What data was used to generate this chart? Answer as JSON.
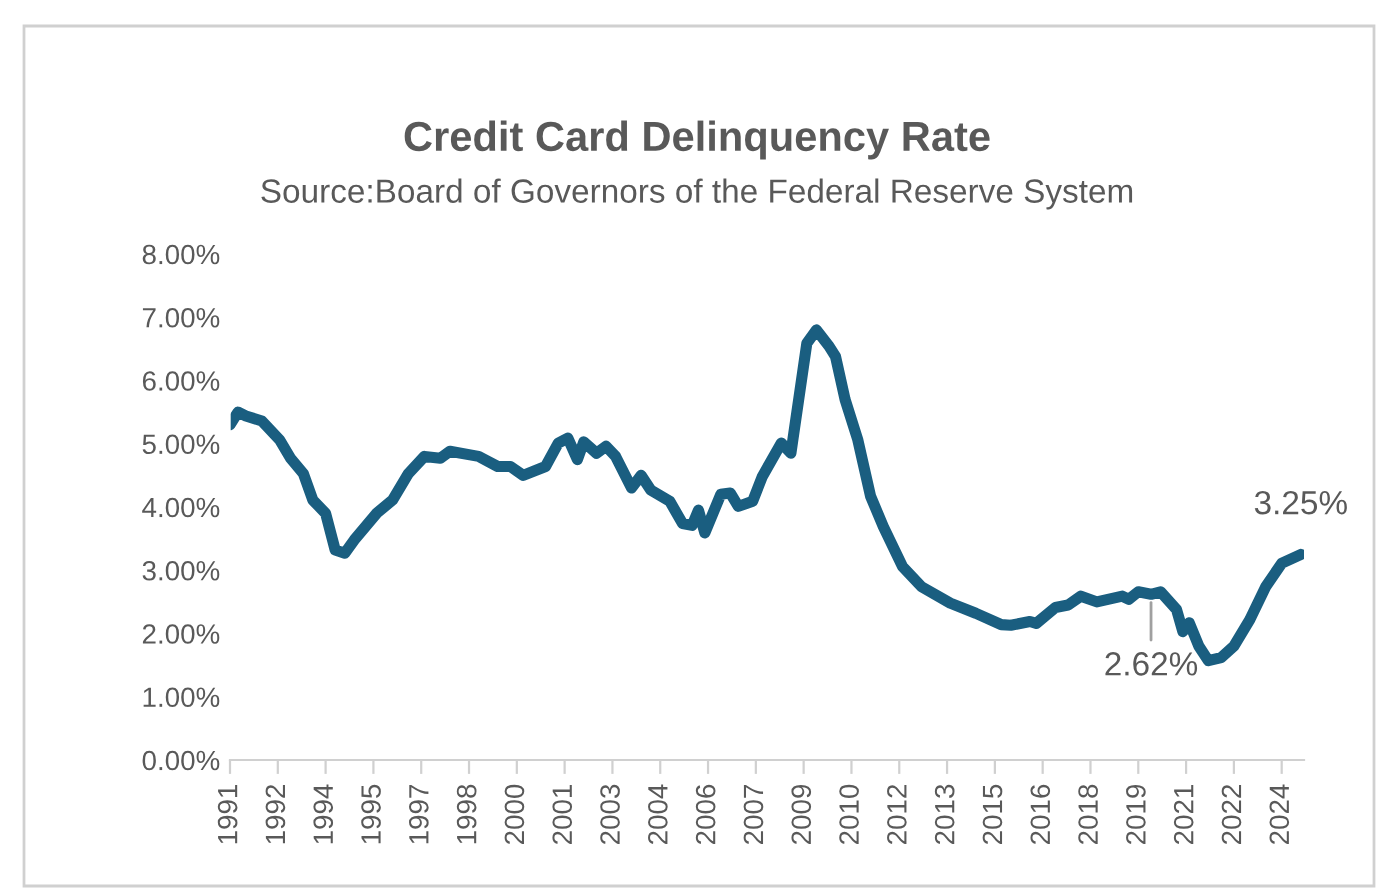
{
  "chart_data": {
    "type": "line",
    "title": "Credit Card Delinquency Rate",
    "subtitle": "Source:Board of Governors of the Federal Reserve System",
    "x": [
      1991.0,
      1991.25,
      1991.5,
      1992.0,
      1992.56,
      1992.9,
      1993.3,
      1993.6,
      1994.0,
      1994.3,
      1994.6,
      1994.9,
      1995.6,
      1996.1,
      1996.6,
      1997.1,
      1997.6,
      1997.9,
      1998.8,
      1999.4,
      1999.8,
      2000.2,
      2000.9,
      2001.3,
      2001.6,
      2001.9,
      2002.1,
      2002.5,
      2002.8,
      2003.1,
      2003.6,
      2003.9,
      2004.2,
      2004.8,
      2005.2,
      2005.5,
      2005.7,
      2005.9,
      2006.4,
      2006.7,
      2006.95,
      2007.4,
      2007.7,
      2008.3,
      2008.6,
      2009.1,
      2009.4,
      2009.8,
      2010.0,
      2010.3,
      2010.7,
      2011.1,
      2011.5,
      2012.1,
      2012.7,
      2013.6,
      2014.4,
      2015.2,
      2015.5,
      2016.1,
      2016.3,
      2016.9,
      2017.3,
      2017.7,
      2018.2,
      2019.0,
      2019.2,
      2019.5,
      2019.9,
      2020.2,
      2020.7,
      2020.9,
      2021.1,
      2021.4,
      2021.7,
      2022.1,
      2022.5,
      2023.0,
      2023.5,
      2024.0,
      2024.6
    ],
    "series": [
      {
        "color": "#1a5e80",
        "values": [
          5.3,
          5.5,
          5.44,
          5.36,
          5.06,
          4.77,
          4.53,
          4.11,
          3.9,
          3.32,
          3.27,
          3.48,
          3.9,
          4.11,
          4.53,
          4.8,
          4.77,
          4.88,
          4.8,
          4.64,
          4.64,
          4.5,
          4.64,
          5.01,
          5.09,
          4.75,
          5.03,
          4.85,
          4.96,
          4.8,
          4.3,
          4.5,
          4.27,
          4.09,
          3.74,
          3.71,
          3.95,
          3.59,
          4.2,
          4.22,
          4.01,
          4.09,
          4.48,
          5.01,
          4.85,
          6.59,
          6.8,
          6.54,
          6.38,
          5.7,
          5.06,
          4.17,
          3.69,
          3.06,
          2.74,
          2.48,
          2.32,
          2.14,
          2.13,
          2.19,
          2.16,
          2.41,
          2.45,
          2.59,
          2.5,
          2.59,
          2.54,
          2.66,
          2.62,
          2.66,
          2.38,
          2.03,
          2.17,
          1.8,
          1.57,
          1.62,
          1.8,
          2.22,
          2.74,
          3.11,
          3.25
        ]
      }
    ],
    "xlim": [
      1991.0,
      2024.7
    ],
    "xticks": [
      {
        "value": 1991.0,
        "label": "1991"
      },
      {
        "value": 1992.5,
        "label": "1992"
      },
      {
        "value": 1994.0,
        "label": "1994"
      },
      {
        "value": 1995.5,
        "label": "1995"
      },
      {
        "value": 1997.0,
        "label": "1997"
      },
      {
        "value": 1998.5,
        "label": "1998"
      },
      {
        "value": 2000.0,
        "label": "2000"
      },
      {
        "value": 2001.5,
        "label": "2001"
      },
      {
        "value": 2003.0,
        "label": "2003"
      },
      {
        "value": 2004.5,
        "label": "2004"
      },
      {
        "value": 2006.0,
        "label": "2006"
      },
      {
        "value": 2007.5,
        "label": "2007"
      },
      {
        "value": 2009.0,
        "label": "2009"
      },
      {
        "value": 2010.5,
        "label": "2010"
      },
      {
        "value": 2012.0,
        "label": "2012"
      },
      {
        "value": 2013.5,
        "label": "2013"
      },
      {
        "value": 2015.0,
        "label": "2015"
      },
      {
        "value": 2016.5,
        "label": "2016"
      },
      {
        "value": 2018.0,
        "label": "2018"
      },
      {
        "value": 2019.5,
        "label": "2019"
      },
      {
        "value": 2021.0,
        "label": "2021"
      },
      {
        "value": 2022.5,
        "label": "2022"
      },
      {
        "value": 2024.0,
        "label": "2024"
      }
    ],
    "ylim": [
      0,
      8
    ],
    "yticks": [
      {
        "value": 0,
        "label": "0.00%"
      },
      {
        "value": 1,
        "label": "1.00%"
      },
      {
        "value": 2,
        "label": "2.00%"
      },
      {
        "value": 3,
        "label": "3.00%"
      },
      {
        "value": 4,
        "label": "4.00%"
      },
      {
        "value": 5,
        "label": "5.00%"
      },
      {
        "value": 6,
        "label": "6.00%"
      },
      {
        "value": 7,
        "label": "7.00%"
      },
      {
        "value": 8,
        "label": "8.00%"
      }
    ],
    "annotations": [
      {
        "text": "2.62%",
        "x": 2019.9,
        "y": 2.62
      },
      {
        "text": "3.25%",
        "x": 2024.6,
        "y": 3.25
      }
    ],
    "grid": false,
    "legend": false,
    "marker": "none",
    "line_style": "solid"
  }
}
